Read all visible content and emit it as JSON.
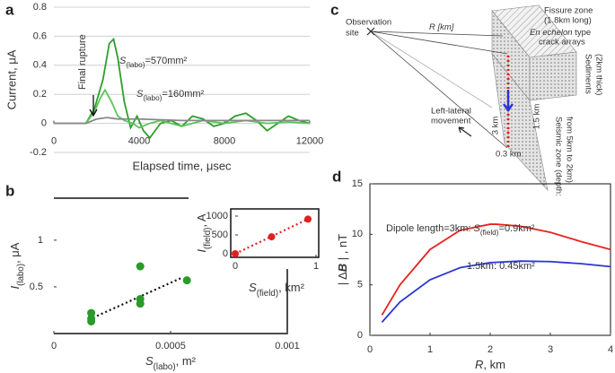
{
  "chart_data": [
    {
      "type": "line",
      "label": "a",
      "xlabel": "Elapsed time, μsec",
      "ylabel": "Current, μA",
      "xlim": [
        0,
        12000
      ],
      "ylim": [
        -0.2,
        0.8
      ],
      "xticks": [
        0,
        4000,
        8000,
        12000
      ],
      "yticks": [
        -0.2,
        0,
        0.2,
        0.4,
        0.6,
        0.8
      ],
      "grid": true,
      "series": [
        {
          "color": "#2ca02c",
          "x": [
            0,
            1500,
            1900,
            2300,
            2600,
            2800,
            3000,
            3300,
            3600,
            3900,
            4200,
            4500,
            5000,
            5500,
            6000,
            6500,
            7000,
            7500,
            8000,
            8500,
            9000,
            9500,
            10000,
            10500,
            11000,
            11500,
            12000
          ],
          "values": [
            0,
            0,
            0.1,
            0.3,
            0.55,
            0.58,
            0.45,
            0.15,
            -0.03,
            0.05,
            -0.05,
            -0.1,
            0,
            0.02,
            -0.02,
            0.05,
            0.03,
            -0.02,
            0,
            0.05,
            0.07,
            0.02,
            -0.05,
            0,
            0.05,
            0.02,
            0
          ]
        },
        {
          "color": "#5cc45c",
          "x": [
            0,
            1500,
            1900,
            2200,
            2400,
            2700,
            3000,
            3300,
            3700,
            4000,
            4500,
            5000,
            5500,
            6000,
            6500,
            7000,
            8000,
            9000,
            10000,
            11000,
            12000
          ],
          "values": [
            0,
            0,
            0.08,
            0.18,
            0.23,
            0.15,
            0.05,
            0.02,
            0,
            -0.03,
            0,
            0.02,
            0,
            -0.02,
            0,
            0.02,
            0,
            0.02,
            0,
            0.01,
            0
          ]
        },
        {
          "color": "#888888",
          "x": [
            0,
            1500,
            2000,
            2500,
            3000,
            4000,
            6000,
            8000,
            10000,
            12000
          ],
          "values": [
            0,
            0,
            0.03,
            0.04,
            0.03,
            0.03,
            0.02,
            0.02,
            0.02,
            0.02
          ]
        }
      ],
      "annotations": [
        {
          "parts": [
            "Final rupture"
          ]
        },
        {
          "parts": [
            "S",
            "(labo)",
            "=570mm²"
          ]
        },
        {
          "parts": [
            "S",
            "(labo)",
            "=160mm²"
          ]
        }
      ]
    },
    {
      "type": "scatter",
      "label": "b",
      "xlabel": {
        "parts": [
          "S",
          "(labo)",
          ",  m²"
        ]
      },
      "ylabel": {
        "parts": [
          "I",
          "(labo)",
          ", μA"
        ]
      },
      "xlim": [
        0,
        0.001
      ],
      "ylim": [
        0,
        1.45
      ],
      "xticks": [
        0,
        0.0005,
        0.001
      ],
      "yticks": [
        0.5,
        1
      ],
      "series": [
        {
          "color": "#2a9a2a",
          "x": [
            0.00016,
            0.00016,
            0.00016,
            0.00037,
            0.00037,
            0.00037,
            0.00057
          ],
          "values": [
            0.22,
            0.16,
            0.13,
            0.72,
            0.37,
            0.32,
            0.57
          ]
        }
      ],
      "trend": {
        "x": [
          0.00015,
          0.00055
        ],
        "y": [
          0.15,
          0.6
        ]
      }
    },
    {
      "type": "scatter",
      "xlabel": {
        "parts": [
          "S",
          "(field)",
          ",  km²"
        ]
      },
      "ylabel": {
        "parts": [
          "I",
          "(field)",
          ", A"
        ]
      },
      "xlim": [
        0,
        1
      ],
      "ylim": [
        0,
        1000
      ],
      "xticks": [
        0,
        1
      ],
      "yticks": [
        0,
        500,
        1000
      ],
      "series": [
        {
          "color": "#e02020",
          "x": [
            0,
            0.45,
            0.9
          ],
          "values": [
            0,
            450,
            920
          ]
        }
      ],
      "trend": {
        "x": [
          0,
          0.9
        ],
        "y": [
          0,
          920
        ]
      }
    },
    {
      "type": "line",
      "label": "d",
      "xlabel": {
        "parts": [
          "R",
          ", km"
        ]
      },
      "ylabel": {
        "parts": [
          "|  Δ",
          "B",
          "  |  , nT"
        ]
      },
      "xlim": [
        0,
        4
      ],
      "ylim": [
        0,
        15
      ],
      "xticks": [
        0,
        1,
        2,
        3,
        4
      ],
      "yticks": [
        0,
        5,
        10,
        15
      ],
      "series": [
        {
          "color": "#e8231f",
          "x": [
            0.2,
            0.5,
            1,
            1.5,
            2,
            2.1,
            2.5,
            3,
            3.5,
            4
          ],
          "values": [
            2,
            5,
            8.5,
            10.4,
            11,
            11,
            10.8,
            10.2,
            9.3,
            8.5
          ]
        },
        {
          "color": "#2b35d6",
          "x": [
            0.2,
            0.5,
            1,
            1.5,
            2,
            2.5,
            3,
            3.5,
            4
          ],
          "values": [
            1.3,
            3.3,
            5.5,
            6.7,
            7.2,
            7.35,
            7.3,
            7.1,
            6.8
          ]
        }
      ],
      "annotations": [
        {
          "parts": [
            "Dipole length=3km: ",
            "S",
            "(field)",
            "=0.9km²"
          ]
        },
        {
          "parts": [
            "1.5km: 0.45km²"
          ]
        }
      ]
    }
  ],
  "diagram": {
    "label": "c",
    "observation": "Observation",
    "site": "site",
    "r": "R [km]",
    "fissure": "Fissure zone",
    "fissure_len": "(1.8km long)",
    "echelon_i": "En echelon",
    "echelon": " type",
    "crack": "crack arrays",
    "sediments": "Sediments",
    "sed_thick": "(2km thick)",
    "left": "Left-lateral",
    "movement": "movement",
    "d3": "3 km",
    "d15": "1.5 km",
    "d03": "0.3 km",
    "seismic": "Seismic zone (depth:",
    "seismic2": "from 5km to 2km)"
  }
}
